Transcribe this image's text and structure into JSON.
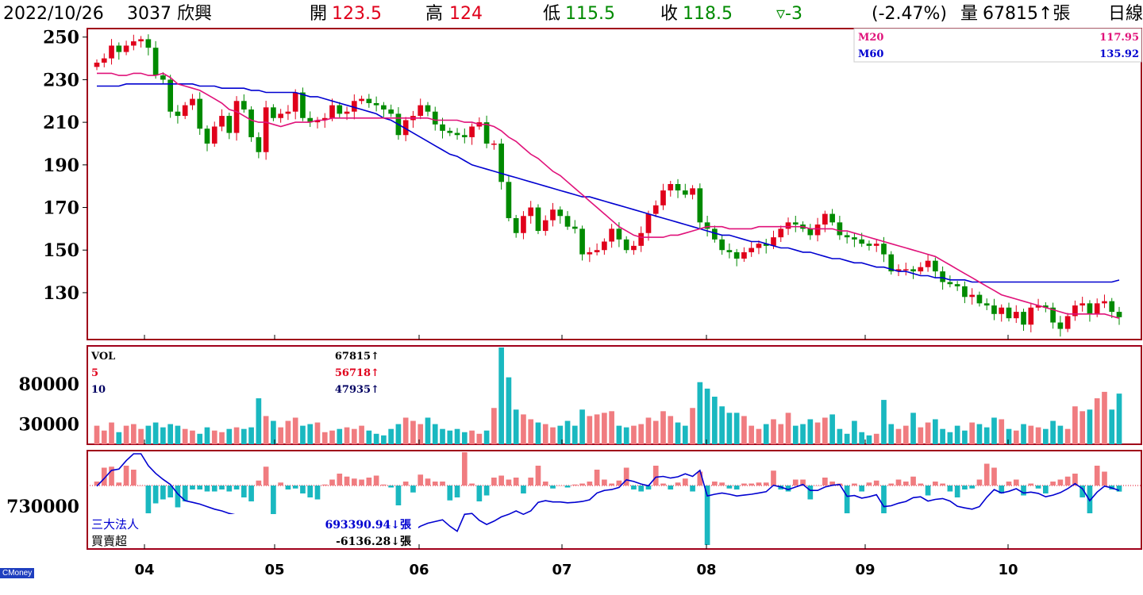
{
  "header": {
    "date": "2022/10/26",
    "stock": "3037 欣興",
    "open_label": "開",
    "open": "123.5",
    "high_label": "高",
    "high": "124",
    "low_label": "低",
    "low": "115.5",
    "close_label": "收",
    "close": "118.5",
    "change": "▿-3",
    "change_pct": "(-2.47%)",
    "volume_label": "量",
    "volume": "67815↑張",
    "period": "日線"
  },
  "colors": {
    "up": "#e0001b",
    "down": "#008a00",
    "frame": "#a0001a",
    "ma20": "#e0127a",
    "ma60": "#0000d0",
    "vol_up": "#f07c80",
    "vol_down": "#1ab8c0"
  },
  "chart_data": [
    {
      "type": "candlestick",
      "legend": [
        {
          "name": "M20",
          "value": "117.95"
        },
        {
          "name": "M60",
          "value": "135.92"
        }
      ],
      "y_ticks": [
        "250",
        "230",
        "210",
        "190",
        "170",
        "150",
        "130"
      ],
      "ylim": [
        108,
        254
      ],
      "x_ticks": [
        "04",
        "05",
        "06",
        "07",
        "08",
        "09",
        "10"
      ],
      "close": [
        238,
        240,
        246,
        243,
        246,
        248,
        249,
        245,
        232,
        230,
        215,
        213,
        218,
        221,
        207,
        200,
        208,
        213,
        205,
        220,
        216,
        203,
        196,
        217,
        212,
        214,
        215,
        224,
        212,
        210,
        211,
        212,
        218,
        214,
        215,
        220,
        221,
        219,
        218,
        216,
        214,
        204,
        211,
        213,
        218,
        215,
        209,
        206,
        205,
        204,
        203,
        208,
        210,
        200,
        200,
        182,
        165,
        158,
        166,
        170,
        159,
        164,
        169,
        166,
        161,
        160,
        148,
        149,
        150,
        154,
        160,
        155,
        150,
        152,
        158,
        167,
        171,
        178,
        181,
        178,
        176,
        179,
        163,
        160,
        155,
        150,
        149,
        146,
        149,
        151,
        153,
        152,
        156,
        160,
        163,
        162,
        160,
        157,
        162,
        167,
        163,
        157,
        156,
        155,
        153,
        152,
        153,
        148,
        140,
        141,
        141,
        140,
        142,
        145,
        140,
        135,
        134,
        133,
        128,
        129,
        125,
        124,
        120,
        123,
        118,
        121,
        115,
        123,
        124,
        123,
        116,
        113,
        119,
        124,
        125,
        120,
        125,
        126,
        121,
        118.5
      ],
      "ma20": [
        233,
        233,
        233,
        232,
        232,
        233,
        233,
        232,
        232,
        233,
        231,
        228,
        227,
        226,
        225,
        223,
        221,
        219,
        216,
        215,
        213,
        211,
        210,
        210,
        209,
        208,
        209,
        210,
        210,
        210,
        211,
        211,
        212,
        212,
        212,
        212,
        212,
        212,
        212,
        212,
        212,
        212,
        212,
        212,
        212,
        212,
        211,
        211,
        211,
        211,
        210,
        210,
        209,
        209,
        208,
        206,
        203,
        201,
        198,
        195,
        193,
        190,
        187,
        185,
        182,
        179,
        176,
        173,
        170,
        167,
        164,
        161,
        159,
        157,
        156,
        156,
        156,
        156,
        157,
        157,
        158,
        159,
        160,
        161,
        161,
        161,
        160,
        160,
        160,
        160,
        161,
        161,
        161,
        161,
        161,
        161,
        161,
        160,
        160,
        160,
        160,
        159,
        159,
        158,
        157,
        156,
        155,
        154,
        153,
        152,
        151,
        150,
        149,
        148,
        147,
        145,
        143,
        141,
        139,
        137,
        135,
        133,
        131,
        129,
        128,
        127,
        126,
        125,
        124,
        123,
        122,
        121,
        120,
        120,
        120,
        120,
        120,
        120,
        119,
        118
      ],
      "ma60": [
        227,
        227,
        227,
        227,
        228,
        228,
        228,
        228,
        228,
        228,
        228,
        228,
        228,
        228,
        227,
        227,
        227,
        226,
        226,
        226,
        226,
        225,
        225,
        224,
        224,
        224,
        224,
        224,
        223,
        222,
        222,
        221,
        220,
        219,
        218,
        217,
        216,
        215,
        214,
        212,
        211,
        209,
        207,
        205,
        203,
        201,
        199,
        197,
        195,
        194,
        192,
        190,
        189,
        188,
        187,
        186,
        185,
        184,
        183,
        182,
        181,
        180,
        179,
        178,
        177,
        176,
        175,
        175,
        174,
        173,
        172,
        171,
        170,
        169,
        168,
        167,
        166,
        165,
        164,
        163,
        162,
        161,
        160,
        159,
        158,
        157,
        157,
        156,
        155,
        154,
        154,
        153,
        152,
        151,
        151,
        150,
        149,
        149,
        148,
        147,
        146,
        146,
        145,
        144,
        144,
        143,
        142,
        142,
        141,
        140,
        140,
        139,
        138,
        138,
        137,
        137,
        136,
        136,
        136,
        135,
        135,
        135,
        135,
        135,
        135,
        135,
        135,
        135,
        135,
        135,
        135,
        135,
        135,
        135,
        135,
        135,
        135,
        135,
        135,
        135.92
      ]
    },
    {
      "type": "bar",
      "legend": [
        {
          "name": "VOL",
          "value": "67815↑"
        },
        {
          "name": "5",
          "value": "56718↑"
        },
        {
          "name": "10",
          "value": "47935↑"
        }
      ],
      "y_ticks": [
        "80000",
        "30000"
      ],
      "ylim": [
        5000,
        125000
      ],
      "values": [
        28000,
        22000,
        32000,
        20000,
        28000,
        30000,
        24000,
        28000,
        32000,
        26000,
        30000,
        28000,
        24000,
        22000,
        18000,
        26000,
        22000,
        20000,
        24000,
        26000,
        24000,
        26000,
        62000,
        40000,
        34000,
        26000,
        34000,
        38000,
        28000,
        30000,
        32000,
        20000,
        22000,
        24000,
        26000,
        24000,
        28000,
        22000,
        18000,
        16000,
        24000,
        30000,
        38000,
        34000,
        30000,
        38000,
        30000,
        24000,
        22000,
        24000,
        20000,
        22000,
        18000,
        22000,
        50000,
        125000,
        88000,
        48000,
        42000,
        36000,
        32000,
        30000,
        26000,
        28000,
        34000,
        28000,
        48000,
        40000,
        42000,
        44000,
        46000,
        28000,
        26000,
        28000,
        30000,
        38000,
        34000,
        46000,
        40000,
        32000,
        28000,
        50000,
        82000,
        74000,
        64000,
        52000,
        44000,
        44000,
        40000,
        28000,
        24000,
        30000,
        36000,
        30000,
        44000,
        28000,
        30000,
        36000,
        32000,
        38000,
        42000,
        24000,
        18000,
        34000,
        20000,
        16000,
        18000,
        60000,
        30000,
        24000,
        28000,
        44000,
        26000,
        32000,
        36000,
        24000,
        20000,
        28000,
        22000,
        32000,
        30000,
        26000,
        38000,
        36000,
        24000,
        22000,
        30000,
        28000,
        26000,
        24000,
        34000,
        28000,
        24000,
        52000,
        46000,
        48000,
        62000,
        70000,
        48000,
        67815
      ]
    },
    {
      "type": "bar+line",
      "legend": [
        {
          "name": "三大法人",
          "value": "693390.94↓張"
        },
        {
          "name": "買賣超",
          "value": "-6136.28↓張"
        }
      ],
      "y_ticks": [
        "730000"
      ],
      "net_buy": [
        4000,
        18000,
        19000,
        3000,
        20000,
        16000,
        0,
        -28000,
        -18000,
        -14000,
        -12000,
        -22000,
        -16000,
        -4000,
        -4000,
        -6000,
        -6000,
        -4000,
        -6000,
        -4000,
        -12000,
        -16000,
        5000,
        19000,
        -30000,
        3000,
        -4000,
        -3000,
        -8000,
        -12000,
        -14000,
        1000,
        6000,
        12000,
        9000,
        7000,
        6000,
        8000,
        10000,
        1000,
        -2000,
        -20000,
        4000,
        -7000,
        11000,
        7000,
        4000,
        4000,
        -15000,
        -12000,
        40000,
        2000,
        -16000,
        -10000,
        8000,
        10000,
        6000,
        8000,
        -8000,
        8000,
        20000,
        4000,
        -3000,
        0,
        -2000,
        1000,
        2000,
        4000,
        16000,
        6000,
        2000,
        5000,
        18000,
        -4000,
        -6000,
        -4000,
        20000,
        2000,
        -4000,
        3000,
        7000,
        -6000,
        14000,
        -60000,
        4000,
        3000,
        -3000,
        -4000,
        2000,
        2000,
        3000,
        3000,
        15000,
        -4000,
        -6000,
        6000,
        6000,
        -14000,
        0,
        8000,
        4000,
        2000,
        -28000,
        2000,
        -6000,
        3000,
        5000,
        -28000,
        2000,
        6000,
        4000,
        9000,
        2000,
        -10000,
        4000,
        2000,
        -6000,
        -12000,
        -4000,
        -3000,
        6000,
        22000,
        18000,
        -8000,
        4000,
        6000,
        -10000,
        2000,
        -3000,
        -8000,
        4000,
        6000,
        9000,
        12000,
        -12000,
        -28000,
        20000,
        14000,
        -4000,
        -6136.28
      ]
    }
  ],
  "watermark": "CMoney"
}
